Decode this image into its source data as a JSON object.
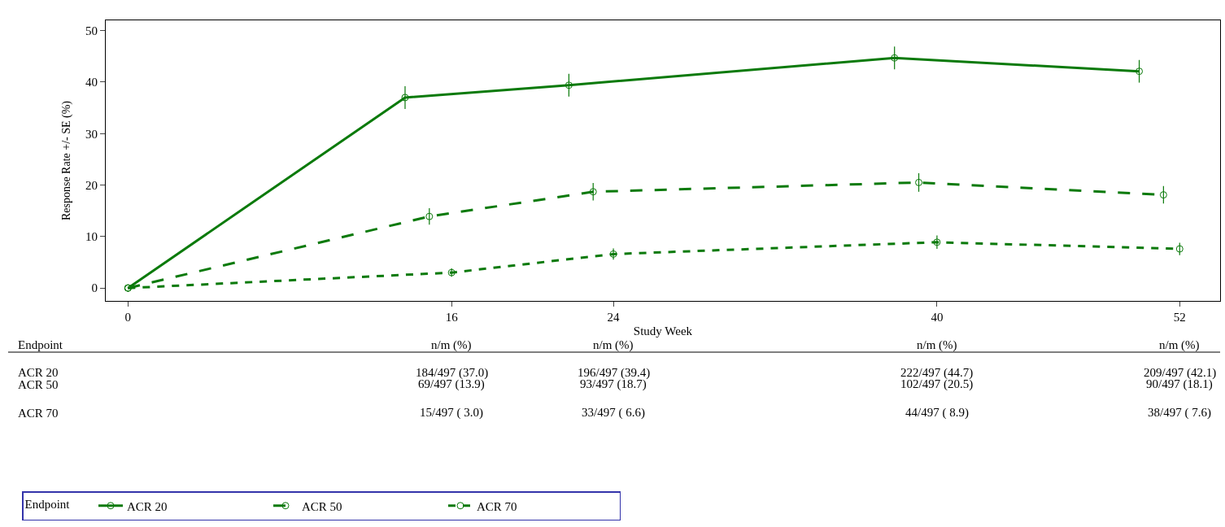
{
  "chart_data": {
    "type": "line",
    "xlabel": "Study Week",
    "ylabel": "Response Rate +/- SE (%)",
    "legend_title": "Endpoint",
    "xlim": [
      -1.1,
      54
    ],
    "xticks": [
      0,
      16,
      24,
      40,
      52
    ],
    "ylim": [
      -2.5,
      52
    ],
    "yticks": [
      0,
      10,
      20,
      30,
      40,
      50
    ],
    "legend": "bottom",
    "marker": "circle",
    "series": [
      {
        "name": "ACR 20",
        "color": "#0b7a0b",
        "line_style": "solid",
        "x": [
          0,
          13.7,
          21.8,
          37.9,
          50.0
        ],
        "values": [
          0,
          37.0,
          39.4,
          44.7,
          42.1
        ],
        "errors": [
          null,
          2.2,
          2.2,
          2.2,
          2.2
        ]
      },
      {
        "name": "ACR 50",
        "color": "#0b7a0b",
        "line_style": "dashed",
        "x": [
          0,
          14.9,
          23.0,
          39.1,
          51.2
        ],
        "values": [
          0,
          13.9,
          18.7,
          20.5,
          18.1
        ],
        "errors": [
          null,
          1.6,
          1.7,
          1.8,
          1.7
        ]
      },
      {
        "name": "ACR 70",
        "color": "#0b7a0b",
        "line_style": "dotted",
        "x": [
          0,
          16,
          24,
          40,
          52
        ],
        "values": [
          0,
          3.0,
          6.6,
          8.9,
          7.6
        ],
        "errors": [
          null,
          0.8,
          1.1,
          1.3,
          1.2
        ]
      }
    ],
    "annotations": [
      "Endpoint",
      "n/m (%)",
      "n/m (%)",
      "n/m (%)",
      "n/m (%)",
      "ACR 20",
      "184/497 (37.0)",
      "196/497 (39.4)",
      "222/497 (44.7)",
      "209/497 (42.1)",
      "ACR 50",
      "69/497 (13.9)",
      "93/497 (18.7)",
      "102/497 (20.5)",
      "90/497 (18.1)",
      "ACR 70",
      "15/497 ( 3.0)",
      "33/497 ( 6.6)",
      "44/497 ( 8.9)",
      "38/497 ( 7.6)"
    ]
  }
}
